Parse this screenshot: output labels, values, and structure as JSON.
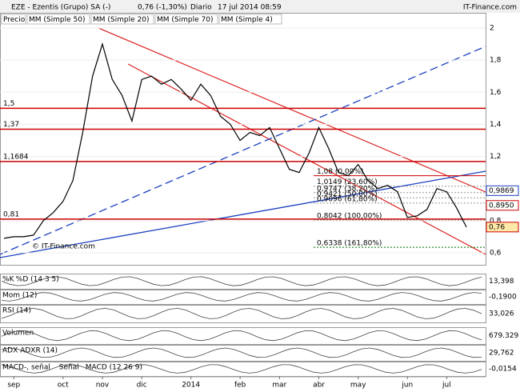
{
  "header": {
    "title": "EZE - Ezentis (Grupo) SA (-)",
    "price": "0,76 (-1,30%)",
    "period": "Diario",
    "datetime": "17 jul 2014 08:59",
    "brand": "IT-Finance.com"
  },
  "legend": [
    "Precio",
    "MM (Simple 50)",
    "MM (Simple 20)",
    "MM (Simple 70)",
    "MM (Simple 4)"
  ],
  "watermark": "© IT-Finance.com",
  "chart_data": {
    "type": "line",
    "color": "#000000",
    "categories": [
      null,
      "sep",
      null,
      null,
      null,
      null,
      "oct",
      null,
      null,
      null,
      "nov",
      null,
      null,
      null,
      "dic",
      null,
      null,
      null,
      null,
      "2014",
      null,
      null,
      null,
      null,
      "feb",
      null,
      null,
      null,
      "mar",
      null,
      null,
      null,
      "abr",
      null,
      null,
      null,
      "may",
      null,
      null,
      null,
      null,
      "jun",
      null,
      null,
      null,
      "jul",
      null,
      null
    ],
    "values": [
      0.69,
      0.7,
      0.7,
      0.71,
      0.8,
      0.85,
      0.92,
      1.05,
      1.35,
      1.7,
      1.9,
      1.68,
      1.58,
      1.42,
      1.68,
      1.7,
      1.65,
      1.68,
      1.62,
      1.55,
      1.65,
      1.58,
      1.45,
      1.4,
      1.3,
      1.35,
      1.33,
      1.38,
      1.25,
      1.12,
      1.1,
      1.22,
      1.38,
      1.25,
      1.1,
      1.08,
      1.15,
      1.05,
      1.0,
      1.02,
      0.98,
      0.82,
      0.83,
      0.87,
      1.0,
      0.98,
      0.88,
      0.76
    ],
    "ylim": [
      0.53,
      2.07
    ],
    "yticks": [
      2,
      {
        "value": 1.8,
        "label": "1,8"
      },
      {
        "value": 1.6,
        "label": "1,6"
      },
      {
        "value": 1.4,
        "label": "1,4"
      },
      {
        "value": 1.2,
        "label": "1,2"
      },
      {
        "value": 0.8,
        "label": "0,8"
      },
      {
        "value": 0.6,
        "label": "0,6"
      }
    ],
    "levels": [
      {
        "value": 1.5,
        "label": "1,5"
      },
      {
        "value": 1.37,
        "label": "1,37"
      },
      {
        "value": 1.1684,
        "label": "1,1684"
      },
      {
        "value": 0.81,
        "label": "0,81"
      }
    ],
    "fibonacci": [
      {
        "value": 1.08,
        "label": "1,08 (0,00%)"
      },
      {
        "value": 1.0149,
        "label": "1,0149 (23,60%)"
      },
      {
        "value": 0.9747,
        "label": "0,9747 (38,20%)"
      },
      {
        "value": 0.9421,
        "label": "0,9421 (50,00%)"
      },
      {
        "value": 0.9096,
        "label": "0,9096 (61,80%)"
      },
      {
        "value": 0.8042,
        "label": "0,8042 (100,00%)"
      },
      {
        "value": 0.6338,
        "label": "0,6338 (161,80%)"
      }
    ],
    "tags": [
      {
        "value": 0.9869,
        "label": "0,9869",
        "color": "#1a3fbf"
      },
      {
        "value": 0.895,
        "label": "0,8950",
        "color": "#cc0000"
      },
      {
        "value": 0.76,
        "label": "0,76",
        "color": "#cc0000"
      }
    ]
  },
  "panels": [
    {
      "labels": [
        "%K",
        "%D (14 3 5)"
      ],
      "value": "13,398"
    },
    {
      "labels": [
        "Mom (12)"
      ],
      "value": "-0,1900"
    },
    {
      "labels": [
        "RSI (14)"
      ],
      "value": "33,026"
    },
    {
      "labels": [
        "Volumen"
      ],
      "value": "679.329"
    },
    {
      "labels": [
        "ADX",
        "ADXR (14)"
      ],
      "value": "29,762"
    },
    {
      "labels": [
        "MACD-, señal",
        "Señal",
        "MACD (12 26 9)"
      ],
      "value": "-0,0154"
    }
  ]
}
